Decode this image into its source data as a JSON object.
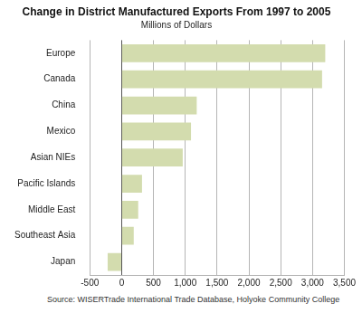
{
  "chart_data": {
    "type": "bar",
    "orientation": "horizontal",
    "title": "Change in District Manufactured Exports From 1997 to 2005",
    "subtitle": "Millions of Dollars",
    "categories": [
      "Europe",
      "Canada",
      "China",
      "Mexico",
      "Asian NIEs",
      "Pacific Islands",
      "Middle East",
      "Southeast Asia",
      "Japan"
    ],
    "values": [
      3200,
      3150,
      1180,
      1090,
      960,
      320,
      260,
      190,
      -220
    ],
    "color": "#d3dcae",
    "xlim": [
      -500,
      3500
    ],
    "xticks": [
      -500,
      0,
      500,
      {
        "value": 1000,
        "label": "1,000"
      },
      {
        "value": 1500,
        "label": "1,500"
      },
      {
        "value": 2000,
        "label": "2,000"
      },
      {
        "value": 2500,
        "label": "2,500"
      },
      {
        "value": 3000,
        "label": "3,000"
      },
      {
        "value": 3500,
        "label": "3,500"
      }
    ],
    "grid": true,
    "annotations": [
      "Source: WISERTrade International Trade Database, Holyoke Community College"
    ]
  }
}
